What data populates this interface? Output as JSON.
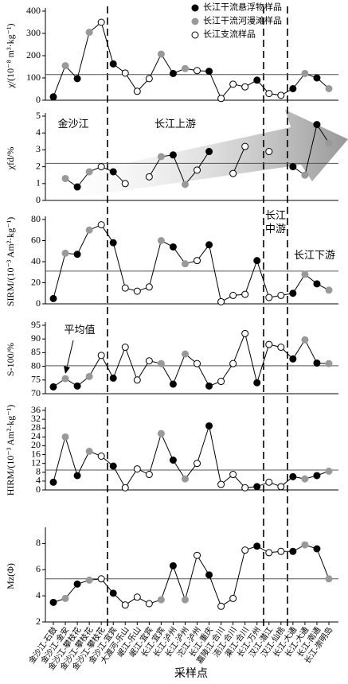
{
  "legend": [
    {
      "name": "长江干流悬浮物样品",
      "color": "#000000"
    },
    {
      "name": "长江干流河漫滩样品",
      "color": "#999999"
    },
    {
      "name": "长江支流样品",
      "color": "#ffffff"
    }
  ],
  "marker_colors": [
    "#000000",
    "#999999",
    "#000000",
    "#999999",
    "#ffffff",
    "#000000",
    "#ffffff",
    "#ffffff",
    "#ffffff",
    "#999999",
    "#000000",
    "#999999",
    "#ffffff",
    "#000000",
    "#ffffff",
    "#ffffff",
    "#ffffff",
    "#000000",
    "#ffffff",
    "#ffffff",
    "#000000",
    "#999999",
    "#000000",
    "#999999"
  ],
  "chart_data": [
    {
      "type": "line",
      "ylabel": "χ/(10⁻⁸ m³·kg⁻¹)",
      "ylim": [
        0,
        400
      ],
      "yticks": [
        0,
        100,
        200,
        300,
        400
      ],
      "mean": 115,
      "values": [
        15,
        155,
        97,
        305,
        350,
        163,
        122,
        40,
        97,
        207,
        120,
        142,
        133,
        130,
        8,
        72,
        60,
        90,
        30,
        22,
        52,
        120,
        100,
        52
      ]
    },
    {
      "type": "line",
      "ylabel": "χfd/%",
      "ylim": [
        0,
        5
      ],
      "yticks": [
        0,
        1,
        2,
        3,
        4,
        5
      ],
      "mean": 2.2,
      "annotations": [
        "金沙江",
        "长江上游"
      ],
      "values": [
        null,
        1.3,
        0.8,
        1.7,
        2.0,
        1.7,
        1.0,
        null,
        1.4,
        2.6,
        2.7,
        0.95,
        1.8,
        2.9,
        null,
        1.6,
        3.2,
        null,
        2.9,
        null,
        2.0,
        1.5,
        4.5,
        3.4
      ]
    },
    {
      "type": "line",
      "ylabel": "SIRM/(10⁻³ Am²·kg⁻¹)",
      "ylim": [
        0,
        80
      ],
      "yticks": [
        0,
        20,
        40,
        60,
        80
      ],
      "mean": 31,
      "annotations": [
        "长江",
        "中游",
        "长江下游"
      ],
      "values": [
        5,
        48,
        47,
        70,
        75,
        58,
        15,
        12,
        16,
        60,
        54,
        38,
        41,
        56,
        2,
        8,
        9,
        41,
        6,
        8,
        10,
        28,
        19,
        13
      ]
    },
    {
      "type": "line",
      "ylabel": "S-100/%",
      "ylim": [
        70,
        95
      ],
      "yticks": [
        70,
        75,
        80,
        85,
        90,
        95
      ],
      "mean": 80.2,
      "annotations": [
        "平均值"
      ],
      "values": [
        72.5,
        75.5,
        72.8,
        76.3,
        84,
        75.7,
        87,
        75,
        82,
        81,
        73.5,
        84.5,
        81,
        72.8,
        74.5,
        81,
        92,
        74,
        88,
        87,
        82.7,
        89.7,
        81.2,
        81
      ]
    },
    {
      "type": "line",
      "ylabel": "HIRM/(10⁻³ Am²·kg⁻¹)",
      "ylim": [
        0,
        36
      ],
      "yticks": [
        0,
        4,
        8,
        12,
        16,
        20,
        24,
        28,
        32,
        36
      ],
      "mean": 9,
      "values": [
        3.5,
        24,
        6.5,
        17.5,
        15.3,
        10.8,
        1,
        9.5,
        7,
        25.5,
        13.5,
        5,
        12,
        29,
        2.5,
        7,
        1,
        1.5,
        3.5,
        1.5,
        6,
        5,
        6.5,
        8.5
      ]
    },
    {
      "type": "line",
      "ylabel": "Mz(Φ)",
      "ylim": [
        2,
        9
      ],
      "yticks": [
        2,
        4,
        6,
        8
      ],
      "mean": 5.3,
      "xlabel": "采样点",
      "values": [
        3.5,
        3.8,
        4.9,
        5.2,
        5.3,
        4.2,
        3.3,
        3.9,
        3.4,
        3.7,
        6.3,
        3.7,
        7.1,
        5.6,
        3.2,
        3.8,
        7.5,
        7.8,
        7.3,
        7.4,
        7.4,
        7.9,
        7.6,
        5.3
      ],
      "categories": [
        "金沙江-石鼓",
        "金沙江-金安",
        "金沙江-攀枝花",
        "金沙江-攀枝花",
        "金沙江-攀枝花",
        "金沙江-宜宾",
        "大渡河-乐山",
        "岷江-乐山",
        "岷江-宜宾",
        "长江-宜宾",
        "长江-泸州",
        "长江-泸州",
        "沱江-泸州",
        "长江-重庆",
        "嘉陵江-合川",
        "涪江-合川",
        "渠江-合川",
        "长江-万州",
        "汉江-潜江",
        "汉江-仙桃",
        "长江-大通",
        "长江-大通",
        "长江-南通",
        "长江-崇明岛"
      ]
    }
  ]
}
